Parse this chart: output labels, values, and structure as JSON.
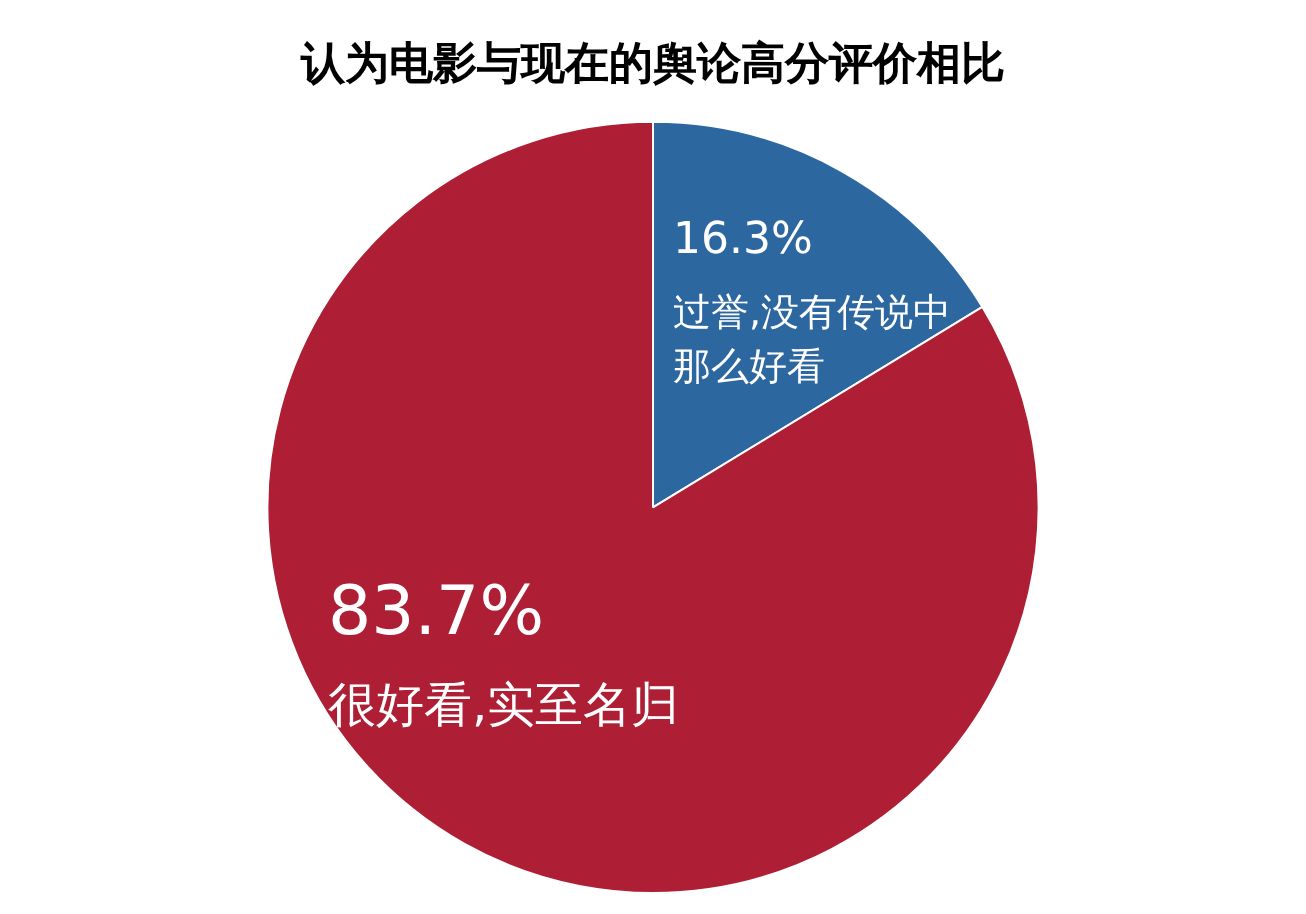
{
  "chart_data": {
    "type": "pie",
    "title": "认为电影与现在的舆论高分评价相比",
    "categories": [
      "过誉,没有传说中那么好看",
      "很好看,实至名归"
    ],
    "values": [
      16.3,
      83.7
    ],
    "colors": [
      "#2c67a0",
      "#ae1f35"
    ],
    "value_labels": [
      "16.3%",
      "83.7%"
    ],
    "legend": false
  }
}
